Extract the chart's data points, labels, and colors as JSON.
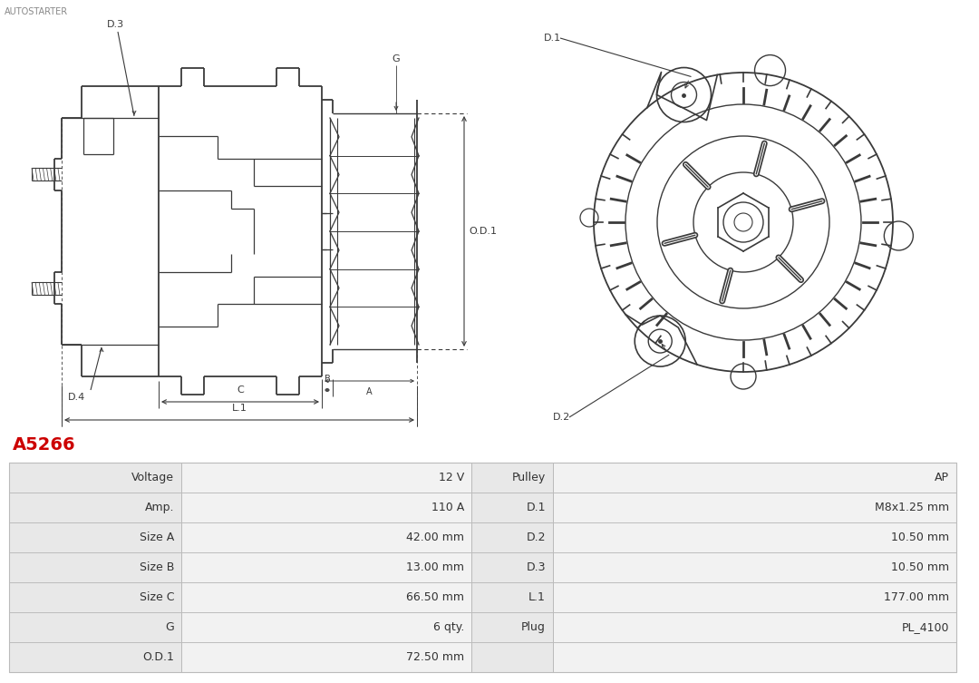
{
  "part_number": "A5266",
  "part_number_color": "#cc0000",
  "background_color": "#ffffff",
  "table_row_bg_odd": "#e8e8e8",
  "table_row_bg_even": "#f2f2f2",
  "table_border_color": "#bbbbbb",
  "table_data": [
    [
      "Voltage",
      "12 V",
      "Pulley",
      "AP"
    ],
    [
      "Amp.",
      "110 A",
      "D.1",
      "M8x1.25 mm"
    ],
    [
      "Size A",
      "42.00 mm",
      "D.2",
      "10.50 mm"
    ],
    [
      "Size B",
      "13.00 mm",
      "D.3",
      "10.50 mm"
    ],
    [
      "Size C",
      "66.50 mm",
      "L.1",
      "177.00 mm"
    ],
    [
      "G",
      "6 qty.",
      "Plug",
      "PL_4100"
    ],
    [
      "O.D.1",
      "72.50 mm",
      "",
      ""
    ]
  ],
  "line_color": "#3a3a3a",
  "header_text": "AUTOSTARTER",
  "header_color": "#888888",
  "header_fontsize": 7
}
